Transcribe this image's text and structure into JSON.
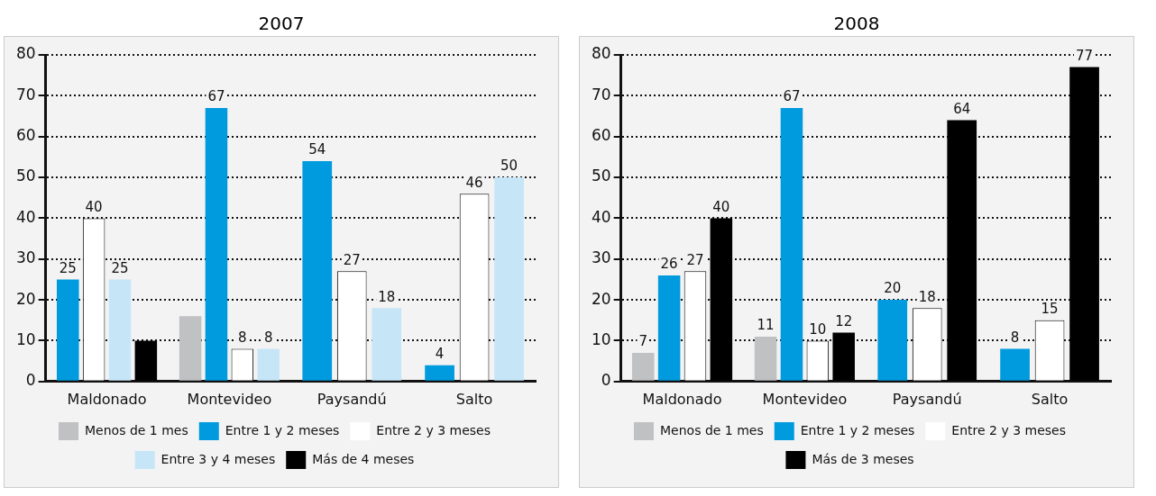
{
  "chart_data": [
    {
      "type": "bar",
      "title": "2007",
      "categories": [
        "Maldonado",
        "Montevideo",
        "Paysandú",
        "Salto"
      ],
      "ylim": [
        0,
        80
      ],
      "yticks": [
        0,
        10,
        20,
        30,
        40,
        50,
        60,
        70,
        80
      ],
      "grid": "y",
      "legend": "bottom",
      "series": [
        {
          "name": "Menos de 1 mes",
          "color": "#c0c1c3",
          "values": [
            null,
            16,
            null,
            null
          ],
          "value_labels": [
            null,
            null,
            null,
            null
          ]
        },
        {
          "name": "Entre 1 y 2 meses",
          "color": "#009ade",
          "values": [
            25,
            67,
            54,
            4
          ],
          "value_labels": [
            "25",
            "67",
            "54",
            "4"
          ]
        },
        {
          "name": "Entre 2 y 3 meses",
          "color": "#ffffff",
          "values": [
            40,
            8,
            27,
            46
          ],
          "value_labels": [
            "40",
            "8",
            "27",
            "46"
          ]
        },
        {
          "name": "Entre 3 y 4 meses",
          "color": "#c6e6f7",
          "values": [
            25,
            8,
            18,
            50
          ],
          "value_labels": [
            "25",
            "8",
            "18",
            "50"
          ]
        },
        {
          "name": "Más de 4 meses",
          "color": "#000000",
          "values": [
            10,
            null,
            null,
            null
          ],
          "value_labels": [
            null,
            null,
            null,
            null
          ]
        }
      ]
    },
    {
      "type": "bar",
      "title": "2008",
      "categories": [
        "Maldonado",
        "Montevideo",
        "Paysandú",
        "Salto"
      ],
      "ylim": [
        0,
        80
      ],
      "yticks": [
        0,
        10,
        20,
        30,
        40,
        50,
        60,
        70,
        80
      ],
      "grid": "y",
      "legend": "bottom",
      "series": [
        {
          "name": "Menos de 1 mes",
          "color": "#c0c1c3",
          "values": [
            7,
            11,
            null,
            null
          ],
          "value_labels": [
            "7",
            "11",
            null,
            null
          ]
        },
        {
          "name": "Entre 1 y 2 meses",
          "color": "#009ade",
          "values": [
            26,
            67,
            20,
            8
          ],
          "value_labels": [
            "26",
            "67",
            "20",
            "8"
          ]
        },
        {
          "name": "Entre 2 y 3 meses",
          "color": "#ffffff",
          "values": [
            27,
            10,
            18,
            15
          ],
          "value_labels": [
            "27",
            "10",
            "18",
            "15"
          ]
        },
        {
          "name": "Más de 3 meses",
          "color": "#000000",
          "values": [
            40,
            12,
            64,
            77
          ],
          "value_labels": [
            "40",
            "12",
            "64",
            "77"
          ]
        }
      ]
    }
  ]
}
